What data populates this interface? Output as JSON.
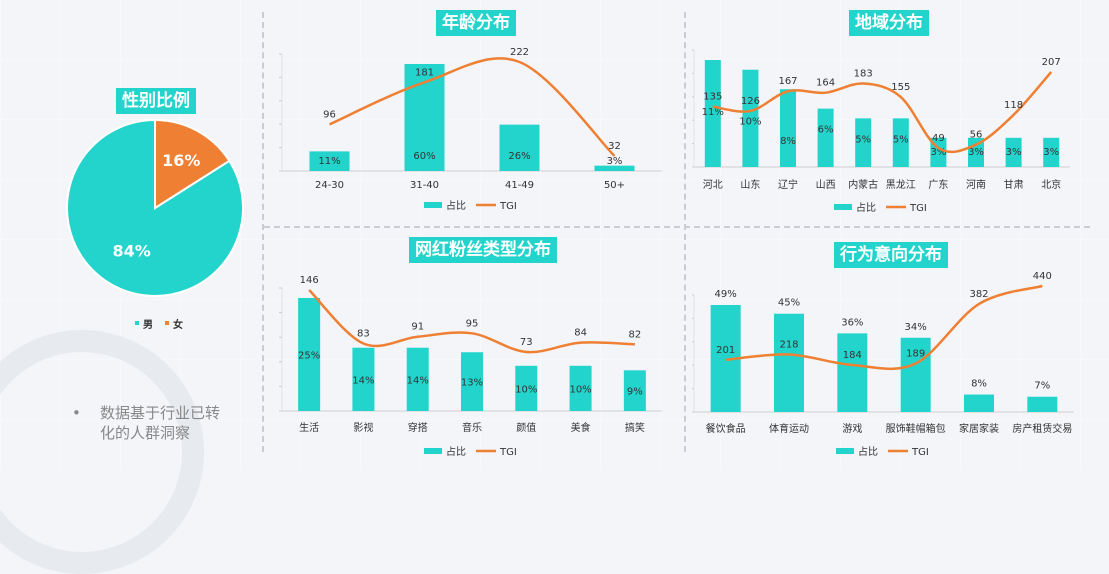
{
  "colors": {
    "teal": "#22d4cb",
    "orange": "#ef7f32",
    "axis": "#d0d0d0",
    "text": "#333333"
  },
  "legend": {
    "share_label": "占比",
    "tgi_label": "TGI",
    "male_label": "男",
    "female_label": "女"
  },
  "note": {
    "bullet": "•",
    "text": "数据基于行业已转化的人群洞察"
  },
  "chart_data": [
    {
      "id": "gender",
      "type": "pie",
      "title": "性别比例",
      "labels": [
        "男",
        "女"
      ],
      "values": [
        84,
        16
      ],
      "value_labels": [
        "84%",
        "16%"
      ],
      "colors": [
        "#22d4cb",
        "#ef7f32"
      ],
      "legend": "bottom"
    },
    {
      "id": "age",
      "type": "bar",
      "title": "年龄分布",
      "categories": [
        "24-30",
        "31-40",
        "41-49",
        "50+"
      ],
      "category_labels": [
        "24-30",
        "31-40",
        "41-49",
        "50+"
      ],
      "series": [
        {
          "name": "占比",
          "type": "bar",
          "values": [
            11,
            60,
            26,
            3
          ],
          "labels": [
            "11%",
            "60%",
            "26%",
            "3%"
          ]
        },
        {
          "name": "TGI",
          "type": "line",
          "values": [
            96,
            181,
            222,
            32
          ]
        }
      ],
      "legend": "bottom"
    },
    {
      "id": "region",
      "type": "bar",
      "title": "地域分布",
      "categories": [
        "河北",
        "山东",
        "辽宁",
        "山西",
        "内蒙古",
        "黑龙江",
        "广东",
        "河南",
        "甘肃",
        "北京"
      ],
      "series": [
        {
          "name": "占比",
          "type": "bar",
          "values": [
            11,
            10,
            8,
            6,
            5,
            5,
            3,
            3,
            3,
            3
          ],
          "labels": [
            "11%",
            "10%",
            "8%",
            "6%",
            "5%",
            "5%",
            "3%",
            "3%",
            "3%",
            "3%"
          ]
        },
        {
          "name": "TGI",
          "type": "line",
          "values": [
            135,
            126,
            167,
            164,
            183,
            155,
            49,
            56,
            118,
            207
          ]
        }
      ],
      "legend": "bottom"
    },
    {
      "id": "fans",
      "type": "bar",
      "title": "网红粉丝类型分布",
      "categories": [
        "生活",
        "影视",
        "穿搭",
        "音乐",
        "颜值",
        "美食",
        "搞笑"
      ],
      "series": [
        {
          "name": "占比",
          "type": "bar",
          "values": [
            25,
            14,
            14,
            13,
            10,
            10,
            9
          ],
          "labels": [
            "25%",
            "14%",
            "14%",
            "13%",
            "10%",
            "10%",
            "9%"
          ]
        },
        {
          "name": "TGI",
          "type": "line",
          "values": [
            146,
            83,
            91,
            95,
            73,
            84,
            82
          ]
        }
      ],
      "legend": "bottom"
    },
    {
      "id": "intent",
      "type": "bar",
      "title": "行为意向分布",
      "categories": [
        "餐饮食品",
        "体育运动",
        "游戏",
        "服饰鞋帽箱包",
        "家居家装",
        "房产租赁交易"
      ],
      "series": [
        {
          "name": "占比",
          "type": "bar",
          "values": [
            49,
            45,
            36,
            34,
            8,
            7
          ],
          "labels": [
            "49%",
            "45%",
            "36%",
            "34%",
            "8%",
            "7%"
          ]
        },
        {
          "name": "TGI",
          "type": "line",
          "values": [
            201,
            218,
            184,
            189,
            382,
            440
          ]
        }
      ],
      "legend": "bottom"
    }
  ]
}
